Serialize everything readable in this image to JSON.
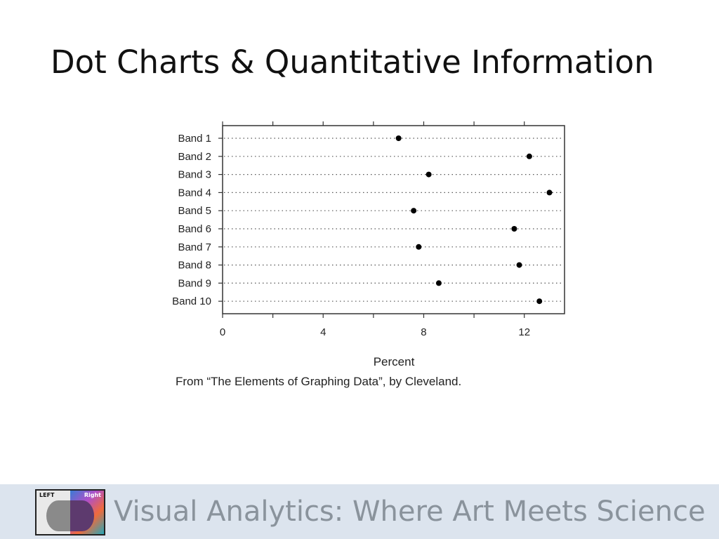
{
  "slide": {
    "title": "Dot Charts & Quantitative Information",
    "caption": "From “The Elements of Graphing Data”, by Cleveland.",
    "footer_text": "Visual Analytics: Where Art Meets Science",
    "logo": {
      "left_label": "LEFT",
      "right_label": "Right"
    }
  },
  "chart_data": {
    "type": "scatter",
    "categories": [
      "Band 1",
      "Band 2",
      "Band 3",
      "Band 4",
      "Band 5",
      "Band 6",
      "Band 7",
      "Band 8",
      "Band 9",
      "Band 10"
    ],
    "values": [
      7.0,
      12.2,
      8.2,
      13.0,
      7.6,
      11.6,
      7.8,
      11.8,
      8.6,
      12.6
    ],
    "xlabel": "Percent",
    "ylabel": "",
    "xlim": [
      0,
      13.6
    ],
    "xticks": [
      0,
      4,
      8,
      12
    ],
    "grid": "dotted horizontal",
    "colors": {
      "dot": "#000000",
      "frame": "#333333",
      "grid": "#555555"
    }
  }
}
